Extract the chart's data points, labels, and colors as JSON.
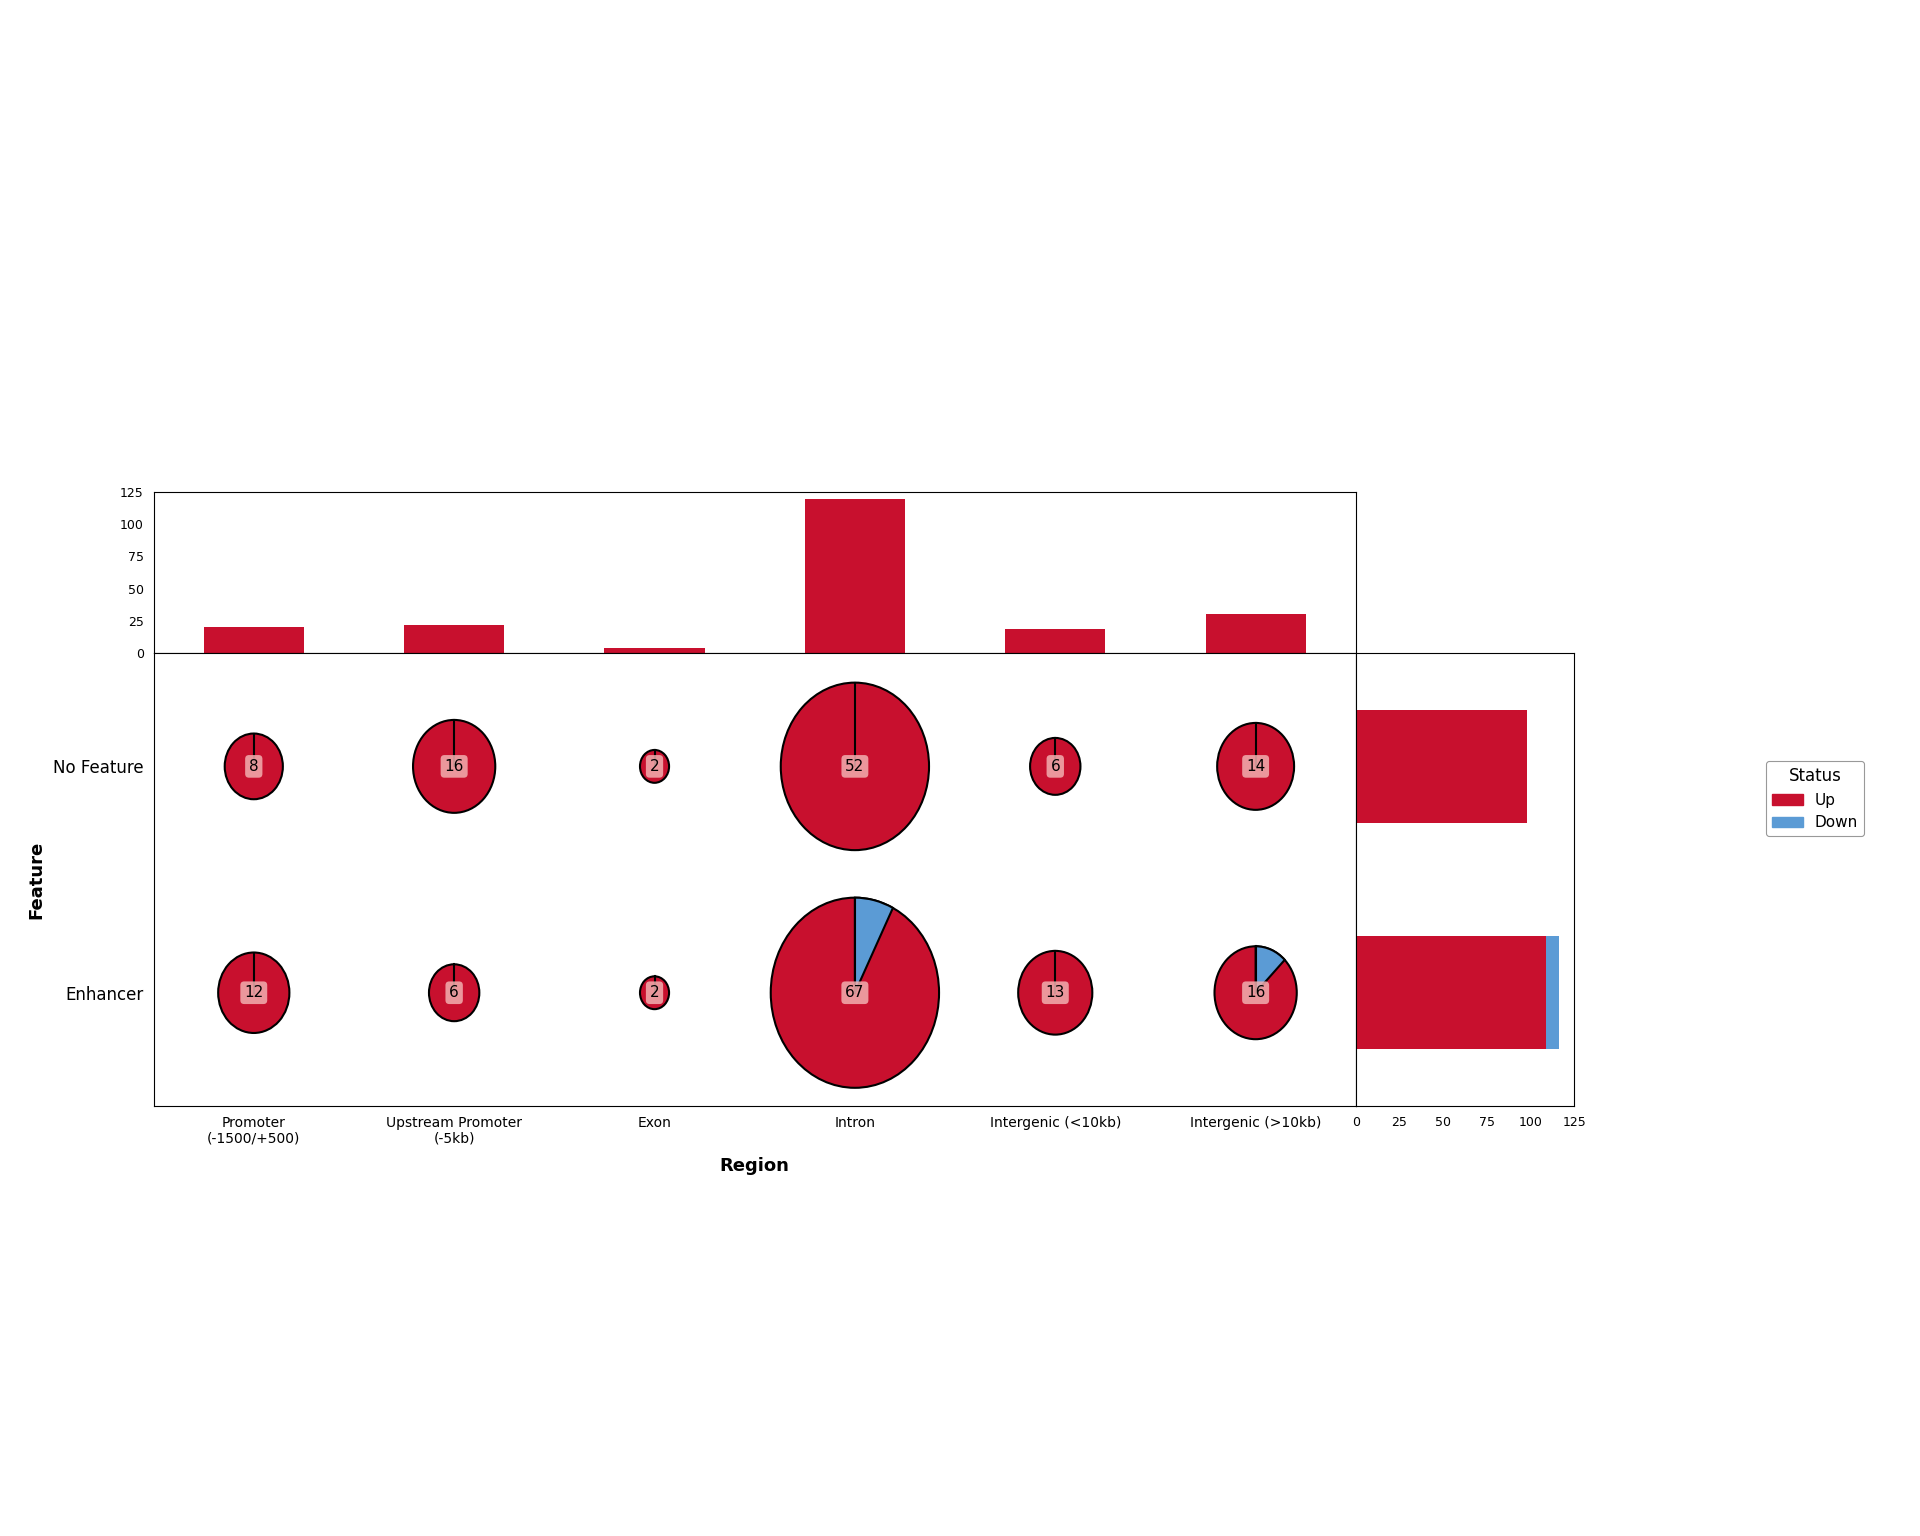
{
  "features": [
    "No Feature",
    "Enhancer"
  ],
  "regions": [
    "Promoter\n(-1500/+500)",
    "Upstream Promoter\n(-5kb)",
    "Exon",
    "Intron",
    "Intergenic (<10kb)",
    "Intergenic (>10kb)"
  ],
  "bubbles": {
    "No Feature": {
      "Promoter\n(-1500/+500)": {
        "total": 8,
        "up": 8,
        "down": 0
      },
      "Upstream Promoter\n(-5kb)": {
        "total": 16,
        "up": 16,
        "down": 0
      },
      "Exon": {
        "total": 2,
        "up": 2,
        "down": 0
      },
      "Intron": {
        "total": 52,
        "up": 52,
        "down": 0
      },
      "Intergenic (<10kb)": {
        "total": 6,
        "up": 6,
        "down": 0
      },
      "Intergenic (>10kb)": {
        "total": 14,
        "up": 14,
        "down": 0
      }
    },
    "Enhancer": {
      "Promoter\n(-1500/+500)": {
        "total": 12,
        "up": 12,
        "down": 0
      },
      "Upstream Promoter\n(-5kb)": {
        "total": 6,
        "up": 6,
        "down": 0
      },
      "Exon": {
        "total": 2,
        "up": 2,
        "down": 0
      },
      "Intron": {
        "total": 67,
        "up": 62,
        "down": 5
      },
      "Intergenic (<10kb)": {
        "total": 13,
        "up": 13,
        "down": 0
      },
      "Intergenic (>10kb)": {
        "total": 16,
        "up": 14,
        "down": 2
      }
    }
  },
  "region_totals": {
    "Promoter\n(-1500/+500)": 20,
    "Upstream Promoter\n(-5kb)": 22,
    "Exon": 4,
    "Intron": 119,
    "Intergenic (<10kb)": 19,
    "Intergenic (>10kb)": 30
  },
  "feature_totals": {
    "No Feature": {
      "up": 98,
      "down": 0
    },
    "Enhancer": {
      "up": 109,
      "down": 7
    }
  },
  "color_up": "#C8102E",
  "color_down": "#5B9BD5",
  "background": "#FFFFFF",
  "xlabel": "Region",
  "ylabel": "Feature",
  "bar_ylim": [
    0,
    125
  ],
  "bar_yticks": [
    0,
    25,
    50,
    75,
    100,
    125
  ],
  "bar_xlim": [
    0,
    125
  ],
  "bar_xticks": [
    0,
    25,
    50,
    75,
    100,
    125
  ]
}
